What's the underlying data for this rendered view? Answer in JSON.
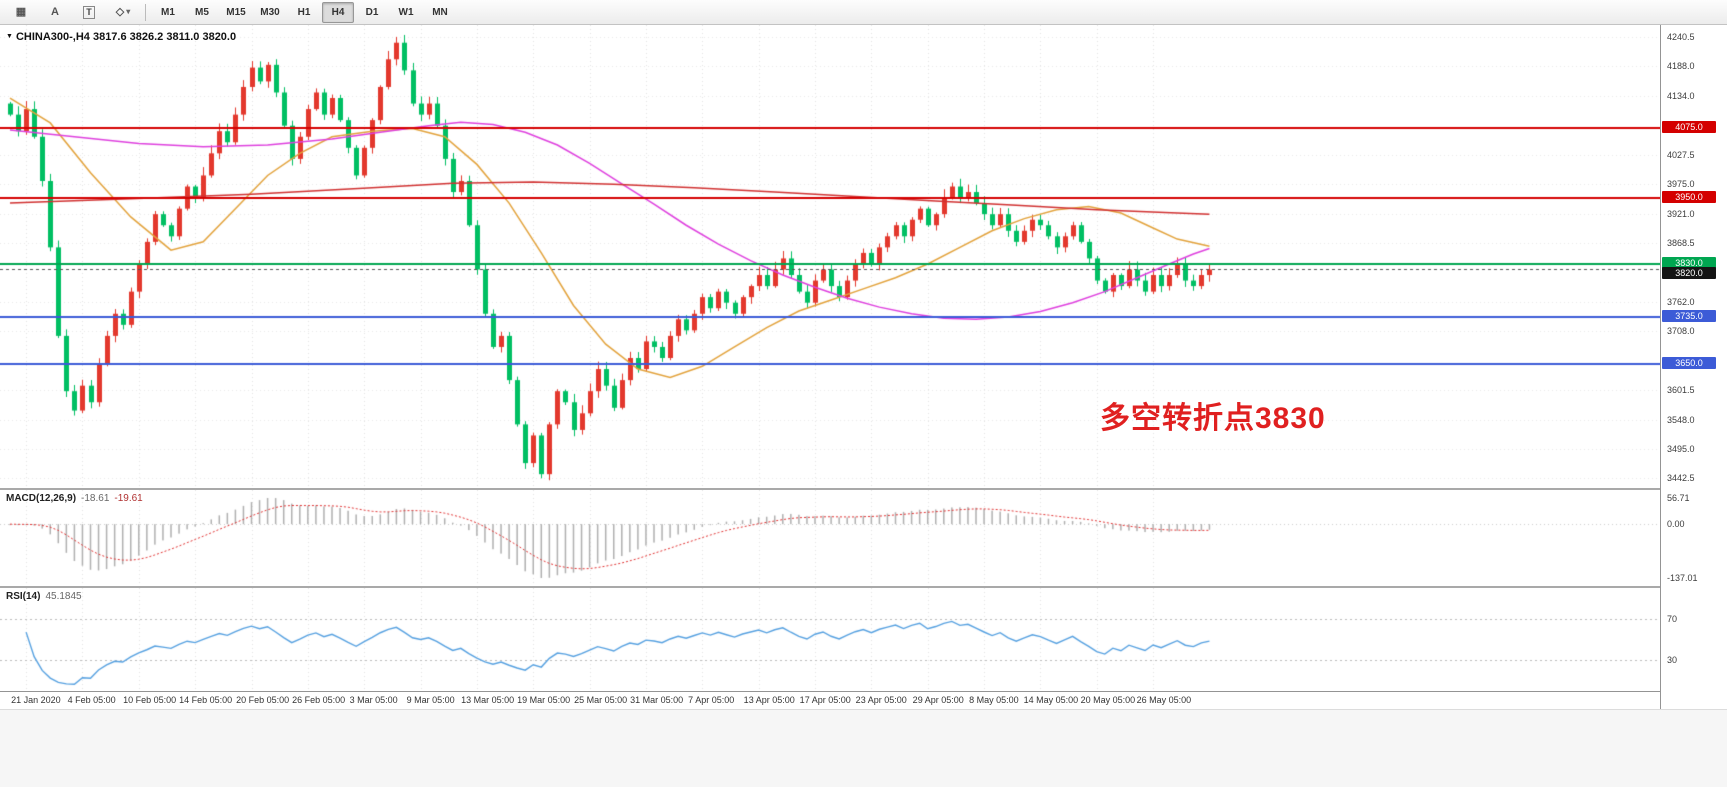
{
  "toolbar": {
    "tools": [
      {
        "name": "grid-tool",
        "glyph": "▦"
      },
      {
        "name": "cursor-a-tool",
        "glyph": "A"
      },
      {
        "name": "text-tool",
        "glyph": "T"
      },
      {
        "name": "shapes-tool",
        "glyph": "◇",
        "caret": "▾"
      }
    ],
    "timeframes": [
      "M1",
      "M5",
      "M15",
      "M30",
      "H1",
      "H4",
      "D1",
      "W1",
      "MN"
    ],
    "active_timeframe": "H4"
  },
  "chart": {
    "title": "CHINA300-,H4 3817.6 3826.2 3811.0 3820.0",
    "dropdown_glyph": "▼",
    "annotation": {
      "text": "多空转折点3830",
      "color": "#e02020"
    },
    "price_axis": {
      "min": 3425,
      "max": 4262,
      "ticks": [
        "4240.5",
        "4188.0",
        "4134.0",
        "4027.5",
        "3975.0",
        "3921.0",
        "3868.5",
        "3762.0",
        "3708.0",
        "3601.5",
        "3548.0",
        "3495.0",
        "3442.5"
      ]
    },
    "hlines": [
      {
        "price": 4075.0,
        "label": "4075.0",
        "color": "#d40000"
      },
      {
        "price": 3950.0,
        "label": "3950.0",
        "color": "#d40000"
      },
      {
        "price": 3830.0,
        "label": "3830.0",
        "color": "#00a651"
      },
      {
        "price": 3735.0,
        "label": "3735.0",
        "color": "#3c5bd7"
      },
      {
        "price": 3650.0,
        "label": "3650.0",
        "color": "#3c5bd7"
      }
    ],
    "current_price": {
      "value": 3820.0,
      "label": "3820.0",
      "bg": "#141414"
    },
    "colors": {
      "up": "#e3382d",
      "down": "#00bf63",
      "grid": "#e6e6e6"
    }
  },
  "chart_data": {
    "type": "candlestick",
    "symbol": "CHINA300-",
    "timeframe": "H4",
    "first_open": 4120,
    "closes": [
      4100,
      4070,
      4110,
      4060,
      3980,
      3860,
      3700,
      3600,
      3565,
      3610,
      3580,
      3650,
      3700,
      3740,
      3720,
      3780,
      3830,
      3870,
      3920,
      3900,
      3880,
      3930,
      3970,
      3950,
      3990,
      4030,
      4070,
      4050,
      4100,
      4150,
      4185,
      4160,
      4190,
      4140,
      4080,
      4020,
      4060,
      4110,
      4140,
      4100,
      4130,
      4090,
      4040,
      3990,
      4040,
      4090,
      4150,
      4200,
      4230,
      4180,
      4120,
      4100,
      4120,
      4080,
      4020,
      3960,
      3980,
      3900,
      3820,
      3740,
      3680,
      3700,
      3620,
      3540,
      3470,
      3520,
      3450,
      3540,
      3600,
      3580,
      3530,
      3560,
      3600,
      3640,
      3610,
      3570,
      3620,
      3660,
      3640,
      3690,
      3680,
      3660,
      3700,
      3730,
      3710,
      3740,
      3770,
      3750,
      3780,
      3760,
      3740,
      3770,
      3790,
      3810,
      3790,
      3820,
      3840,
      3810,
      3780,
      3760,
      3800,
      3820,
      3790,
      3770,
      3800,
      3830,
      3850,
      3830,
      3860,
      3880,
      3900,
      3880,
      3910,
      3930,
      3900,
      3920,
      3950,
      3970,
      3950,
      3960,
      3940,
      3920,
      3900,
      3920,
      3890,
      3870,
      3890,
      3910,
      3900,
      3880,
      3860,
      3880,
      3900,
      3870,
      3840,
      3800,
      3780,
      3810,
      3790,
      3820,
      3800,
      3780,
      3810,
      3790,
      3810,
      3830,
      3800,
      3790,
      3810,
      3820
    ],
    "wick_overrides": {
      "8": {
        "low": 3556
      },
      "32": {
        "high": 4195
      },
      "48": {
        "high": 4240.5
      },
      "66": {
        "low": 3442.5
      },
      "117": {
        "high": 3977
      }
    },
    "x_labels": [
      "21 Jan 2020",
      "4 Feb 05:00",
      "10 Feb 05:00",
      "14 Feb 05:00",
      "20 Feb 05:00",
      "26 Feb 05:00",
      "3 Mar 05:00",
      "9 Mar 05:00",
      "13 Mar 05:00",
      "19 Mar 05:00",
      "25 Mar 05:00",
      "31 Mar 05:00",
      "7 Apr 05:00",
      "13 Apr 05:00",
      "17 Apr 05:00",
      "23 Apr 05:00",
      "29 Apr 05:00",
      "8 May 05:00",
      "14 May 05:00",
      "20 May 05:00",
      "26 May 05:00"
    ],
    "moving_averages": [
      {
        "name": "ma-fast-orange",
        "color": "#e2a23b",
        "points": [
          [
            0,
            4130
          ],
          [
            5,
            4085
          ],
          [
            10,
            3995
          ],
          [
            15,
            3915
          ],
          [
            20,
            3855
          ],
          [
            24,
            3870
          ],
          [
            28,
            3930
          ],
          [
            32,
            3990
          ],
          [
            36,
            4030
          ],
          [
            40,
            4060
          ],
          [
            45,
            4070
          ],
          [
            50,
            4075
          ],
          [
            54,
            4060
          ],
          [
            58,
            4010
          ],
          [
            62,
            3940
          ],
          [
            66,
            3850
          ],
          [
            70,
            3755
          ],
          [
            74,
            3685
          ],
          [
            78,
            3640
          ],
          [
            82,
            3625
          ],
          [
            86,
            3645
          ],
          [
            90,
            3680
          ],
          [
            94,
            3715
          ],
          [
            98,
            3745
          ],
          [
            102,
            3765
          ],
          [
            106,
            3785
          ],
          [
            110,
            3805
          ],
          [
            114,
            3830
          ],
          [
            118,
            3860
          ],
          [
            122,
            3890
          ],
          [
            126,
            3912
          ],
          [
            130,
            3928
          ],
          [
            134,
            3934
          ],
          [
            138,
            3922
          ],
          [
            142,
            3895
          ],
          [
            145,
            3875
          ],
          [
            149,
            3862
          ]
        ]
      },
      {
        "name": "ma-mid-magenta",
        "color": "#de3fde",
        "points": [
          [
            0,
            4072
          ],
          [
            8,
            4060
          ],
          [
            16,
            4048
          ],
          [
            24,
            4042
          ],
          [
            32,
            4045
          ],
          [
            40,
            4056
          ],
          [
            46,
            4068
          ],
          [
            52,
            4080
          ],
          [
            56,
            4086
          ],
          [
            60,
            4082
          ],
          [
            64,
            4068
          ],
          [
            68,
            4045
          ],
          [
            72,
            4012
          ],
          [
            76,
            3975
          ],
          [
            80,
            3938
          ],
          [
            84,
            3900
          ],
          [
            88,
            3866
          ],
          [
            92,
            3836
          ],
          [
            96,
            3810
          ],
          [
            100,
            3788
          ],
          [
            104,
            3768
          ],
          [
            108,
            3752
          ],
          [
            112,
            3740
          ],
          [
            116,
            3732
          ],
          [
            120,
            3730
          ],
          [
            124,
            3734
          ],
          [
            128,
            3744
          ],
          [
            132,
            3760
          ],
          [
            136,
            3780
          ],
          [
            140,
            3805
          ],
          [
            144,
            3830
          ],
          [
            147,
            3848
          ],
          [
            149,
            3858
          ]
        ]
      },
      {
        "name": "ma-slow-red",
        "color": "#d03030",
        "points": [
          [
            0,
            3940
          ],
          [
            15,
            3948
          ],
          [
            30,
            3956
          ],
          [
            45,
            3968
          ],
          [
            55,
            3976
          ],
          [
            65,
            3978
          ],
          [
            75,
            3974
          ],
          [
            85,
            3968
          ],
          [
            95,
            3960
          ],
          [
            105,
            3952
          ],
          [
            115,
            3944
          ],
          [
            125,
            3936
          ],
          [
            135,
            3928
          ],
          [
            145,
            3922
          ],
          [
            149,
            3920
          ]
        ]
      }
    ]
  },
  "macd": {
    "name": "MACD(12,26,9)",
    "value_main": "-18.61",
    "value_signal": "-19.61",
    "ticks": {
      "max": "56.71",
      "zero": "0.00",
      "min": "-137.01"
    },
    "histogram_color": "#b0b0b0",
    "signal_color": "#e03030",
    "params": {
      "fast": 12,
      "slow": 26,
      "signal": 9
    }
  },
  "rsi": {
    "name": "RSI(14)",
    "value": "45.1845",
    "period": 14,
    "levels": [
      70,
      30
    ],
    "level_labels": [
      "70",
      "30"
    ],
    "line_color": "#55a0e0"
  }
}
